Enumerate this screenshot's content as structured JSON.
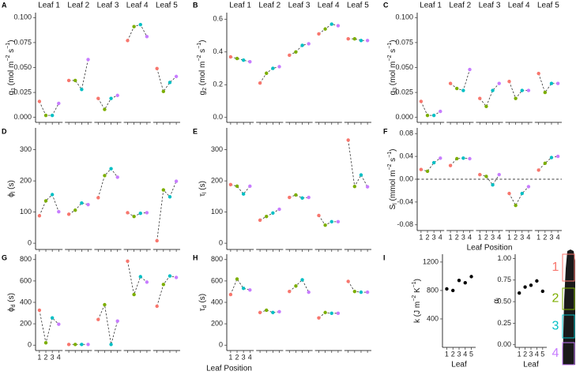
{
  "figure": {
    "xlabel": "Leaf Position",
    "position_colors": [
      "#F8766D",
      "#7CAE00",
      "#00BFC4",
      "#C77CFF"
    ]
  },
  "leaf_image": {
    "labels": [
      "1",
      "2",
      "3",
      "4"
    ]
  },
  "chart_data": [
    {
      "panel": "A",
      "type": "facet-dot",
      "ylabel": [
        {
          "t": "g"
        },
        {
          "t": "1",
          "s": "sub"
        },
        {
          "t": " (mol m"
        },
        {
          "t": "−2",
          "s": "sup"
        },
        {
          "t": " s"
        },
        {
          "t": "−1",
          "s": "sup"
        },
        {
          "t": ")"
        }
      ],
      "facets": [
        "Leaf 1",
        "Leaf 2",
        "Leaf 3",
        "Leaf 4",
        "Leaf 5"
      ],
      "xticks": [
        1,
        2,
        3,
        4
      ],
      "xlim": [
        0.4,
        4.6
      ],
      "xtick_labels": "none",
      "ylim": [
        -0.005,
        0.105
      ],
      "yticks": [
        {
          "value": 0,
          "label": "0.000"
        },
        {
          "value": 0.025,
          "label": "0.025"
        },
        {
          "value": 0.05,
          "label": "0.050"
        },
        {
          "value": 0.075,
          "label": "0.075"
        },
        {
          "value": 0.1,
          "label": "0.100"
        }
      ],
      "series": [
        {
          "values": [
            0.016,
            0.002,
            0.002,
            0.014
          ]
        },
        {
          "values": [
            0.037,
            0.037,
            0.028,
            0.058
          ]
        },
        {
          "values": [
            0.019,
            0.008,
            0.019,
            0.022
          ]
        },
        {
          "values": [
            0.077,
            0.091,
            0.093,
            0.081
          ]
        },
        {
          "values": [
            0.049,
            0.026,
            0.035,
            0.041
          ]
        }
      ]
    },
    {
      "panel": "B",
      "type": "facet-dot",
      "ylabel": [
        {
          "t": "g"
        },
        {
          "t": "2",
          "s": "sub"
        },
        {
          "t": " (mol m"
        },
        {
          "t": "−2",
          "s": "sup"
        },
        {
          "t": " s"
        },
        {
          "t": "−1",
          "s": "sup"
        },
        {
          "t": ")"
        }
      ],
      "facets": [
        "Leaf 1",
        "Leaf 2",
        "Leaf 3",
        "Leaf 4",
        "Leaf 5"
      ],
      "xticks": [
        1,
        2,
        3,
        4
      ],
      "xlim": [
        0.4,
        4.6
      ],
      "xtick_labels": "none",
      "ylim": [
        -0.03,
        0.64
      ],
      "yticks": [
        {
          "value": 0,
          "label": "0.0"
        },
        0.2,
        0.4,
        0.6
      ],
      "series": [
        {
          "values": [
            0.37,
            0.36,
            0.35,
            0.34
          ]
        },
        {
          "values": [
            0.21,
            0.27,
            0.3,
            0.31
          ]
        },
        {
          "values": [
            0.38,
            0.4,
            0.44,
            0.45
          ]
        },
        {
          "values": [
            0.51,
            0.54,
            0.57,
            0.56
          ]
        },
        {
          "values": [
            0.48,
            0.48,
            0.47,
            0.47
          ]
        }
      ]
    },
    {
      "panel": "C",
      "type": "facet-dot",
      "ylabel": [
        {
          "t": "g"
        },
        {
          "t": "3",
          "s": "sub"
        },
        {
          "t": " (mol m"
        },
        {
          "t": "−2",
          "s": "sup"
        },
        {
          "t": " s"
        },
        {
          "t": "−1",
          "s": "sup"
        },
        {
          "t": ")"
        }
      ],
      "facets": [
        "Leaf 1",
        "Leaf 2",
        "Leaf 3",
        "Leaf 4",
        "Leaf 5"
      ],
      "xticks": [
        1,
        2,
        3,
        4
      ],
      "xlim": [
        0.4,
        4.6
      ],
      "xtick_labels": "none",
      "ylim": [
        -0.005,
        0.105
      ],
      "yticks": [
        {
          "value": 0,
          "label": "0.000"
        },
        {
          "value": 0.025,
          "label": "0.025"
        },
        {
          "value": 0.05,
          "label": "0.050"
        },
        {
          "value": 0.075,
          "label": "0.075"
        },
        {
          "value": 0.1,
          "label": "0.100"
        }
      ],
      "series": [
        {
          "values": [
            0.016,
            0.002,
            0.002,
            0.006
          ]
        },
        {
          "values": [
            0.034,
            0.029,
            0.027,
            0.048
          ]
        },
        {
          "values": [
            0.019,
            0.011,
            0.027,
            0.034
          ]
        },
        {
          "values": [
            0.036,
            0.019,
            0.027,
            0.027
          ]
        },
        {
          "values": [
            0.044,
            0.025,
            0.034,
            0.034
          ]
        }
      ]
    },
    {
      "panel": "D",
      "type": "facet-dot",
      "ylabel": [
        {
          "t": "ϕ"
        },
        {
          "t": "l",
          "s": "sub"
        },
        {
          "t": " (s)"
        }
      ],
      "xticks": [
        1,
        2,
        3,
        4
      ],
      "xlim": [
        0.4,
        4.6
      ],
      "xtick_labels": "none",
      "ylim": [
        -20,
        370
      ],
      "yticks": [
        0,
        100,
        200,
        300
      ],
      "series": [
        {
          "values": [
            88,
            136,
            156,
            101
          ]
        },
        {
          "values": [
            93,
            106,
            129,
            124
          ]
        },
        {
          "values": [
            146,
            217,
            239,
            212
          ]
        },
        {
          "values": [
            98,
            86,
            96,
            98
          ]
        },
        {
          "values": [
            8,
            171,
            149,
            199
          ]
        }
      ]
    },
    {
      "panel": "E",
      "type": "facet-dot",
      "ylabel": [
        {
          "t": "τ"
        },
        {
          "t": "l",
          "s": "sub"
        },
        {
          "t": " (s)"
        }
      ],
      "xticks": [
        1,
        2,
        3,
        4
      ],
      "xlim": [
        0.4,
        4.6
      ],
      "xtick_labels": "none",
      "ylim": [
        -20,
        370
      ],
      "yticks": [
        0,
        100,
        200,
        300
      ],
      "series": [
        {
          "values": [
            188,
            183,
            158,
            183
          ]
        },
        {
          "values": [
            74,
            86,
            97,
            109
          ]
        },
        {
          "values": [
            147,
            155,
            145,
            147
          ]
        },
        {
          "values": [
            89,
            58,
            69,
            69
          ]
        },
        {
          "values": [
            331,
            182,
            219,
            181
          ]
        }
      ]
    },
    {
      "panel": "F",
      "type": "facet-dot",
      "ylabel": [
        {
          "t": "S"
        },
        {
          "t": "l",
          "s": "sub"
        },
        {
          "t": " (mmol m"
        },
        {
          "t": "−2",
          "s": "sup"
        },
        {
          "t": " s"
        },
        {
          "t": "−1",
          "s": "sup"
        },
        {
          "t": ")"
        }
      ],
      "xlabel": "Leaf Position",
      "xticks": [
        1,
        2,
        3,
        4
      ],
      "xlim": [
        0.4,
        4.6
      ],
      "xtick_labels": "all",
      "ylim": [
        -0.09,
        0.09
      ],
      "hline": 0,
      "yticks": [
        -0.08,
        -0.04,
        {
          "value": 0,
          "label": "0.00"
        },
        0.04,
        0.08
      ],
      "series": [
        {
          "values": [
            0.017,
            0.014,
            0.029,
            0.037
          ]
        },
        {
          "values": [
            0.024,
            0.036,
            0.037,
            0.036
          ]
        },
        {
          "values": [
            0.008,
            0.005,
            -0.01,
            0.008
          ]
        },
        {
          "values": [
            -0.025,
            -0.046,
            -0.025,
            -0.013
          ]
        },
        {
          "values": [
            0.016,
            0.028,
            0.038,
            0.04
          ]
        }
      ]
    },
    {
      "panel": "G",
      "type": "facet-dot",
      "ylabel": [
        {
          "t": "ϕ"
        },
        {
          "t": "d",
          "s": "sub"
        },
        {
          "t": " (s)"
        }
      ],
      "xticks": [
        1,
        2,
        3,
        4
      ],
      "xlim": [
        0.4,
        4.6
      ],
      "xtick_labels": "first",
      "ylim": [
        -50,
        850
      ],
      "yticks": [
        0,
        200,
        400,
        600,
        800
      ],
      "series": [
        {
          "values": [
            327,
            22,
            255,
            196
          ]
        },
        {
          "values": [
            7,
            7,
            7,
            7
          ]
        },
        {
          "values": [
            240,
            378,
            7,
            225
          ]
        },
        {
          "values": [
            785,
            473,
            640,
            589
          ]
        },
        {
          "values": [
            364,
            567,
            647,
            633
          ]
        }
      ]
    },
    {
      "panel": "H",
      "type": "facet-dot",
      "ylabel": [
        {
          "t": "τ"
        },
        {
          "t": "d",
          "s": "sub"
        },
        {
          "t": " (s)"
        }
      ],
      "xticks": [
        1,
        2,
        3,
        4
      ],
      "xlim": [
        0.4,
        4.6
      ],
      "xtick_labels": "first",
      "ylim": [
        -50,
        850
      ],
      "yticks": [
        0,
        200,
        400,
        600,
        800
      ],
      "series": [
        {
          "values": [
            473,
            618,
            531,
            516
          ]
        },
        {
          "values": [
            305,
            327,
            305,
            313
          ]
        },
        {
          "values": [
            502,
            553,
            611,
            495
          ]
        },
        {
          "values": [
            255,
            305,
            298,
            298
          ]
        },
        {
          "values": [
            596,
            502,
            495,
            495
          ]
        }
      ]
    },
    {
      "panel": "I",
      "type": "dot",
      "ylabel": [
        {
          "t": "k (J m"
        },
        {
          "t": "−2",
          "s": "sup"
        },
        {
          "t": " K"
        },
        {
          "t": "−1",
          "s": "sup"
        },
        {
          "t": ")"
        }
      ],
      "xlabel": "Leaf",
      "x": [
        1,
        2,
        3,
        4,
        5
      ],
      "xticks": [
        1,
        2,
        3,
        4,
        5
      ],
      "xlim": [
        0.3,
        5.7
      ],
      "ylim": [
        0,
        1310
      ],
      "yticks": [
        400,
        800,
        1200
      ],
      "color": "#000000",
      "values": [
        822,
        800,
        941,
        908,
        995
      ]
    },
    {
      "type": "dot",
      "ylabel": [
        {
          "t": "α"
        },
        {
          "t": "l",
          "s": "sub"
        }
      ],
      "xlabel": "Leaf",
      "x": [
        1,
        2,
        3,
        4,
        5
      ],
      "xticks": [
        1,
        2,
        3,
        4,
        5
      ],
      "xlim": [
        0.3,
        5.7
      ],
      "ylim": [
        -0.03,
        1.05
      ],
      "color": "#000000",
      "yticks": [
        {
          "value": 0,
          "label": "0.00"
        },
        0.25,
        {
          "value": 0.5,
          "label": "0.50"
        },
        0.75,
        {
          "value": 1,
          "label": "1.00"
        }
      ],
      "values": [
        0.6,
        0.67,
        0.69,
        0.74,
        0.62
      ]
    }
  ]
}
